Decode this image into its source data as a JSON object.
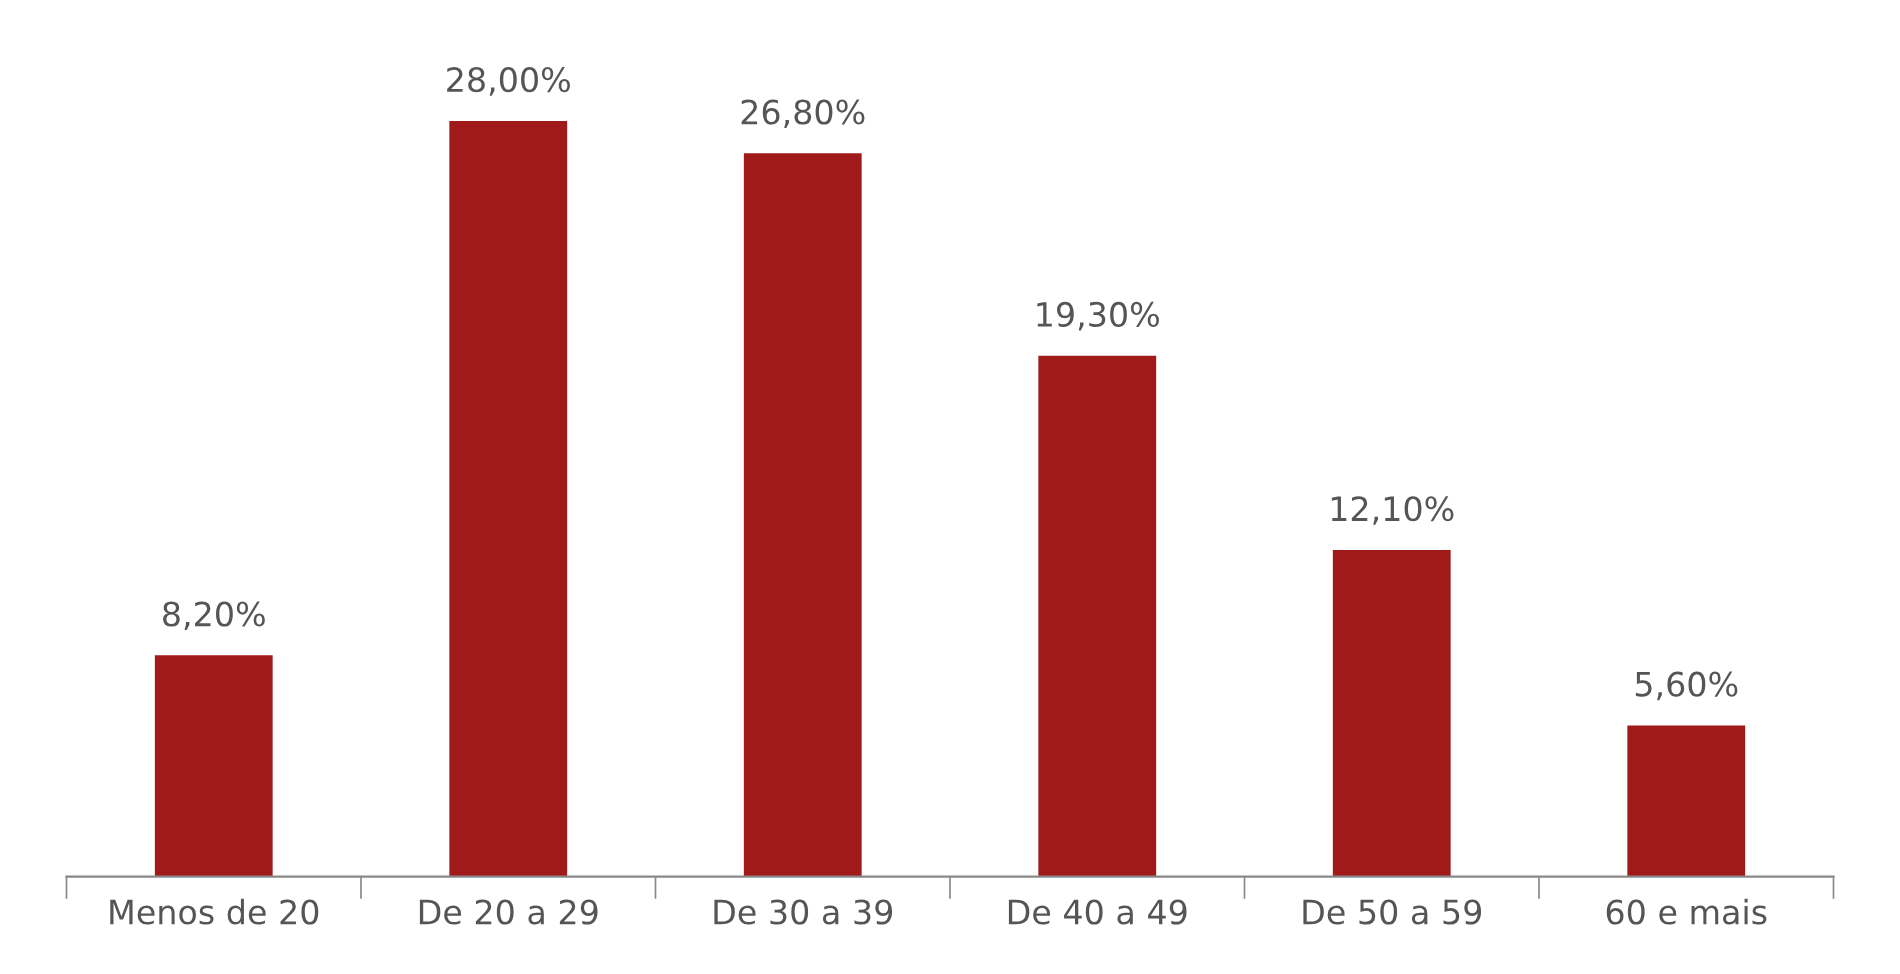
{
  "chart_data": {
    "type": "bar",
    "categories": [
      "Menos de 20",
      "De 20 a 29",
      "De 30 a 39",
      "De 40 a 49",
      "De 50 a 59",
      "60 e mais"
    ],
    "values": [
      8.2,
      28.0,
      26.8,
      19.3,
      12.1,
      5.6
    ],
    "value_labels": [
      "8,20%",
      "28,00%",
      "26,80%",
      "19,30%",
      "12,10%",
      "5,60%"
    ],
    "color": "#a01a1a",
    "grid": false,
    "legend": false
  }
}
